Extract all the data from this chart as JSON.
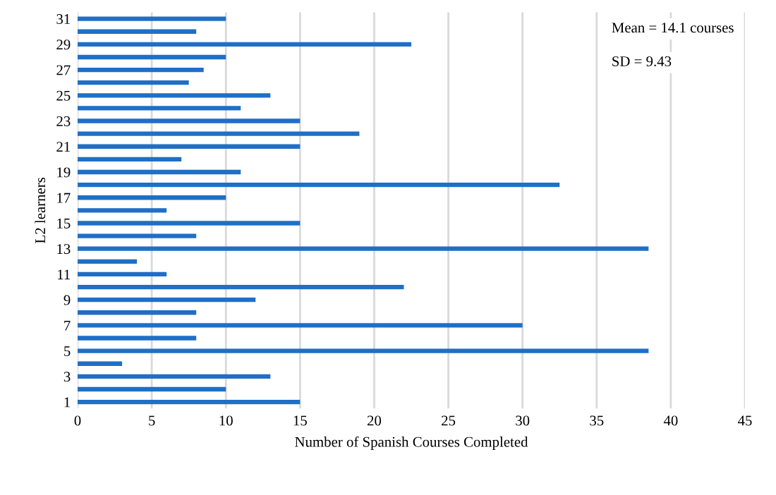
{
  "chart_data": {
    "type": "bar",
    "orientation": "horizontal",
    "xlabel": "Number of Spanish Courses Completed",
    "ylabel": "L2 learners",
    "categories": [
      "31",
      null,
      "29",
      null,
      "27",
      null,
      "25",
      null,
      "23",
      null,
      "21",
      null,
      "19",
      null,
      "17",
      null,
      "15",
      null,
      "13",
      null,
      "11",
      null,
      "9",
      null,
      "7",
      null,
      "5",
      null,
      "3",
      null,
      "1"
    ],
    "values": [
      10,
      8,
      22.5,
      10,
      8.5,
      7.5,
      13,
      11,
      15,
      19,
      15,
      7,
      11,
      32.5,
      10,
      6,
      15,
      8,
      38.5,
      4,
      6,
      22,
      12,
      8,
      30,
      8,
      38.5,
      3,
      13,
      10,
      15
    ],
    "color": "#1f6fc6",
    "xlim": [
      0,
      45
    ],
    "xticks": [
      0,
      5,
      10,
      15,
      20,
      25,
      30,
      35,
      40,
      45
    ],
    "grid": "x",
    "annotations": [
      "Mean = 14.1 courses",
      "SD = 9.43"
    ]
  }
}
